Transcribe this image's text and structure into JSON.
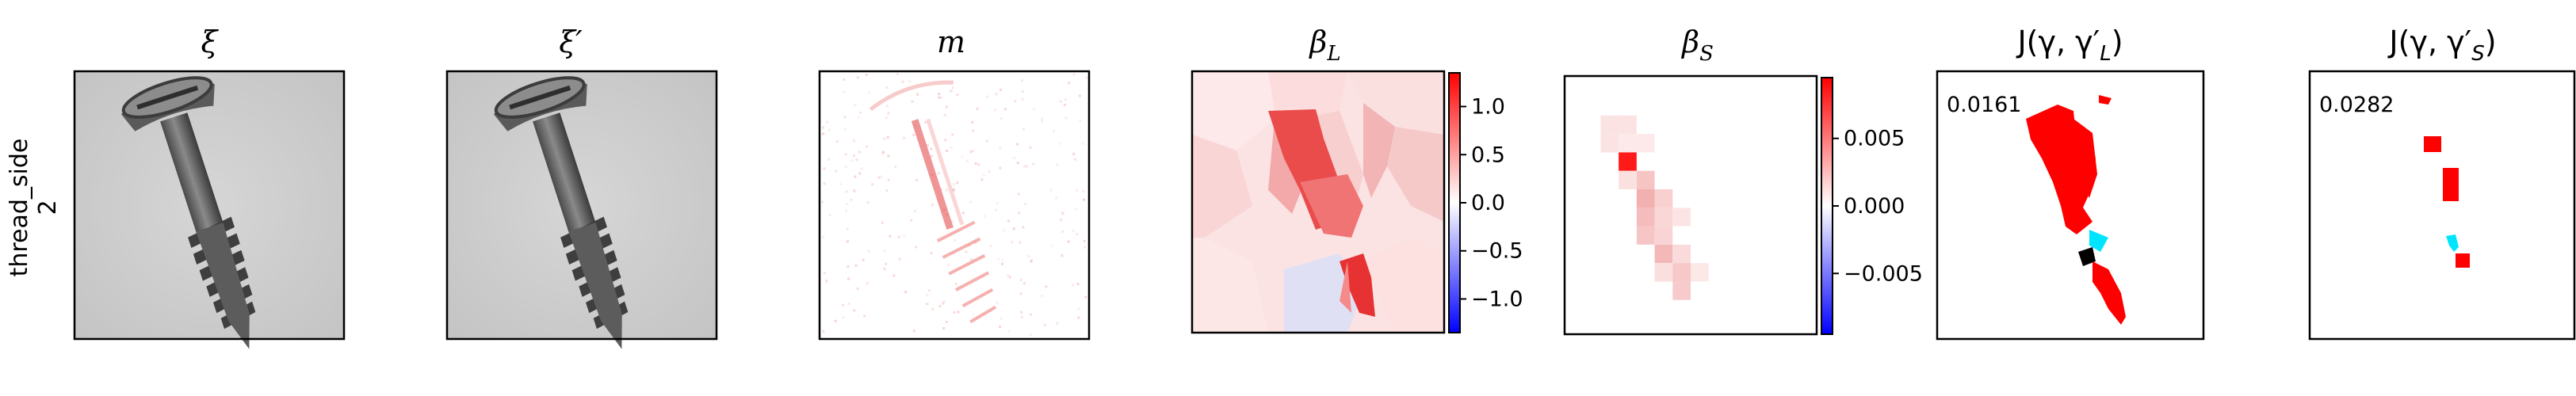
{
  "row_label": [
    "thread_side",
    "2"
  ],
  "panels": [
    {
      "title": "ξ"
    },
    {
      "title": "ξ′"
    },
    {
      "title": "m"
    },
    {
      "title": "β",
      "sub": "L"
    },
    {
      "title": "β",
      "sub": "S"
    },
    {
      "title": "J(γ, γ′",
      "sub": "L",
      "tail": ")",
      "score": "0.0161"
    },
    {
      "title": "J(γ, γ′",
      "sub": "S",
      "tail": ")",
      "score": "0.0282"
    }
  ],
  "colorbars": {
    "beta_L": {
      "ticks": [
        "1.0",
        "0.5",
        "0.0",
        "−0.5",
        "−1.0"
      ],
      "range": [
        -1.35,
        1.35
      ],
      "tick_values": [
        1.0,
        0.5,
        0.0,
        -0.5,
        -1.0
      ]
    },
    "beta_S": {
      "ticks": [
        "0.005",
        "0.000",
        "−0.005"
      ],
      "range": [
        -0.0095,
        0.0095
      ],
      "tick_values": [
        0.005,
        0.0,
        -0.005
      ]
    }
  },
  "colors": {
    "cmap_neg": "#0000ff",
    "cmap_mid": "#ffffff",
    "cmap_pos": "#ff0000",
    "mask_red": "#ff0000",
    "mask_cyan": "#00e5ff",
    "mask_black": "#000000",
    "photo_bg": "#cfcfcf"
  }
}
